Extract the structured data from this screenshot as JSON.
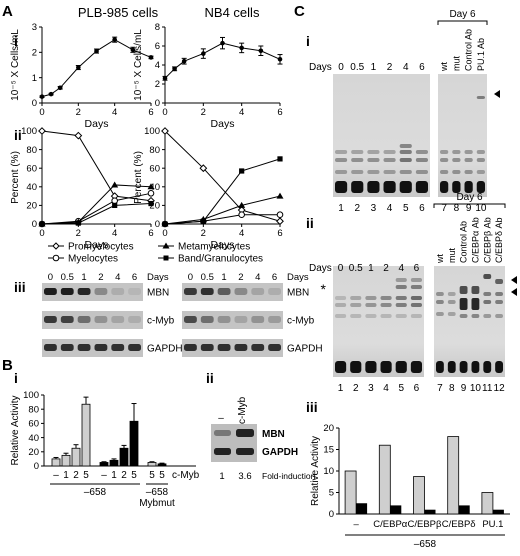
{
  "panel_labels": {
    "A": "A",
    "A_i": "i",
    "A_ii": "ii",
    "A_iii": "iii",
    "B": "B",
    "B_i": "i",
    "B_ii": "ii",
    "C": "C",
    "C_i": "i",
    "C_ii": "ii",
    "C_iii": "iii"
  },
  "panelA": {
    "plb_title": "PLB-985 cells",
    "nb4_title": "NB4 cells",
    "growth_ylabel": "10⁻⁵ X Cells/mL",
    "pct_ylabel": "Percent (%)",
    "xlabel": "Days",
    "legend": [
      "Promyelocytes",
      "Myelocytes",
      "Metamyelocytes",
      "Band/Granulocytes"
    ],
    "blot_days_label": "Days",
    "blot_days": [
      "0",
      "0.5",
      "1",
      "2",
      "4",
      "6"
    ],
    "blot_rows": [
      "MBN",
      "c-Myb",
      "GAPDH"
    ]
  },
  "panelB": {
    "ylabel": "Relative Activity",
    "xticks": [
      "–",
      "1",
      "2",
      "5",
      "–",
      "1",
      "2",
      "5",
      "5",
      "5"
    ],
    "cmyb_label": "c-Myb",
    "group1": "–658",
    "group2": "–658",
    "group2_sub": "Mybmut",
    "blot_cols": [
      "–",
      "c-Myb"
    ],
    "blot_rows": [
      "MBN",
      "GAPDH"
    ],
    "fold_values": [
      "1",
      "3.6"
    ],
    "fold_label": "Fold-induction"
  },
  "panelC": {
    "days_label": "Days",
    "days": [
      "0",
      "0.5",
      "1",
      "2",
      "4",
      "6"
    ],
    "day6": "Day 6",
    "ci_extra": [
      "wt",
      "mut",
      "Control Ab",
      "PU.1 Ab"
    ],
    "cii_extra": [
      "wt",
      "mut",
      "Control Ab",
      "C/EBPα Ab",
      "C/EBPβ Ab",
      "C/EBPδ Ab"
    ],
    "lanes_i": [
      "1",
      "2",
      "3",
      "4",
      "5",
      "6",
      "7",
      "8",
      "9",
      "10"
    ],
    "lanes_ii": [
      "1",
      "2",
      "3",
      "4",
      "5",
      "6",
      "7",
      "8",
      "9",
      "10",
      "11",
      "12"
    ],
    "star": "*",
    "ciii_ylabel": "Relative Activity",
    "ciii_group": "–658"
  },
  "chart_data": [
    {
      "id": "A_i_PLB985",
      "type": "line",
      "title": "PLB-985 cells",
      "xlabel": "Days",
      "ylabel": "10⁻⁵ X Cells/mL",
      "xlim": [
        0,
        6
      ],
      "ylim": [
        0,
        3
      ],
      "xticks": [
        0,
        2,
        4,
        6
      ],
      "yticks": [
        0,
        1,
        2,
        3
      ],
      "series": [
        {
          "x": [
            0,
            0.5,
            1,
            2,
            3,
            4,
            5,
            6
          ],
          "y": [
            0.25,
            0.35,
            0.6,
            1.4,
            2.05,
            2.5,
            2.1,
            1.8
          ],
          "err": [
            0.03,
            0.03,
            0.05,
            0.08,
            0.08,
            0.1,
            0.1,
            0.05
          ]
        }
      ]
    },
    {
      "id": "A_i_NB4",
      "type": "line",
      "title": "NB4 cells",
      "xlabel": "Days",
      "ylabel": "10⁻⁵ X Cells/mL",
      "xlim": [
        0,
        6
      ],
      "ylim": [
        0,
        8
      ],
      "xticks": [
        0,
        2,
        4,
        6
      ],
      "yticks": [
        0,
        2,
        4,
        6,
        8
      ],
      "series": [
        {
          "x": [
            0,
            0.5,
            1,
            2,
            3,
            4,
            5,
            6
          ],
          "y": [
            2.6,
            3.6,
            4.4,
            5.2,
            6.3,
            5.8,
            5.5,
            4.6
          ],
          "err": [
            0.2,
            0.2,
            0.3,
            0.5,
            0.6,
            0.5,
            0.5,
            0.5
          ]
        }
      ]
    },
    {
      "id": "A_ii_PLB985",
      "type": "line",
      "xlabel": "Days",
      "ylabel": "Percent (%)",
      "xlim": [
        0,
        6
      ],
      "ylim": [
        0,
        100
      ],
      "xticks": [
        0,
        2,
        4,
        6
      ],
      "yticks": [
        0,
        20,
        40,
        60,
        80,
        100
      ],
      "series": [
        {
          "name": "Promyelocytes",
          "x": [
            0,
            2,
            4,
            6
          ],
          "y": [
            100,
            95,
            30,
            25
          ]
        },
        {
          "name": "Myelocytes",
          "x": [
            0,
            2,
            4,
            6
          ],
          "y": [
            0,
            3,
            25,
            33
          ]
        },
        {
          "name": "Metamyelocytes",
          "x": [
            0,
            2,
            4,
            6
          ],
          "y": [
            0,
            2,
            42,
            40
          ]
        },
        {
          "name": "Band/Granulocytes",
          "x": [
            0,
            2,
            4,
            6
          ],
          "y": [
            0,
            1,
            20,
            22
          ]
        }
      ]
    },
    {
      "id": "A_ii_NB4",
      "type": "line",
      "xlabel": "Days",
      "ylabel": "Percent (%)",
      "xlim": [
        0,
        6
      ],
      "ylim": [
        0,
        100
      ],
      "xticks": [
        0,
        2,
        4,
        6
      ],
      "yticks": [
        0,
        20,
        40,
        60,
        80,
        100
      ],
      "series": [
        {
          "name": "Promyelocytes",
          "x": [
            0,
            2,
            4,
            6
          ],
          "y": [
            100,
            60,
            15,
            3
          ]
        },
        {
          "name": "Myelocytes",
          "x": [
            0,
            2,
            4,
            6
          ],
          "y": [
            0,
            3,
            10,
            10
          ]
        },
        {
          "name": "Metamyelocytes",
          "x": [
            0,
            2,
            4,
            6
          ],
          "y": [
            0,
            5,
            20,
            30
          ]
        },
        {
          "name": "Band/Granulocytes",
          "x": [
            0,
            2,
            4,
            6
          ],
          "y": [
            0,
            3,
            57,
            70
          ]
        }
      ]
    },
    {
      "id": "B_i",
      "type": "bar",
      "ylabel": "Relative Activity",
      "ylim": [
        0,
        100
      ],
      "yticks": [
        0,
        20,
        40,
        60,
        80,
        100
      ],
      "categories": [
        "–",
        "1",
        "2",
        "5",
        "–",
        "1",
        "2",
        "5",
        "5",
        "5"
      ],
      "values": [
        10,
        15,
        25,
        87,
        5,
        8,
        25,
        63,
        5,
        3
      ],
      "errors": [
        2,
        3,
        5,
        10,
        1,
        2,
        4,
        25,
        1,
        1
      ],
      "fills": [
        "gray",
        "gray",
        "gray",
        "gray",
        "black",
        "black",
        "black",
        "black",
        "gray",
        "black"
      ]
    },
    {
      "id": "C_iii",
      "type": "bar",
      "ylabel": "Relative Activity",
      "ylim": [
        0,
        20
      ],
      "yticks": [
        0,
        5,
        10,
        15,
        20
      ],
      "categories": [
        "–",
        "C/EBPα",
        "C/EBPβ",
        "C/EBPδ",
        "PU.1"
      ],
      "series": [
        {
          "values": [
            10,
            16,
            8.7,
            18,
            5
          ]
        },
        {
          "values": [
            2.5,
            2,
            1,
            2,
            1
          ]
        }
      ]
    }
  ]
}
